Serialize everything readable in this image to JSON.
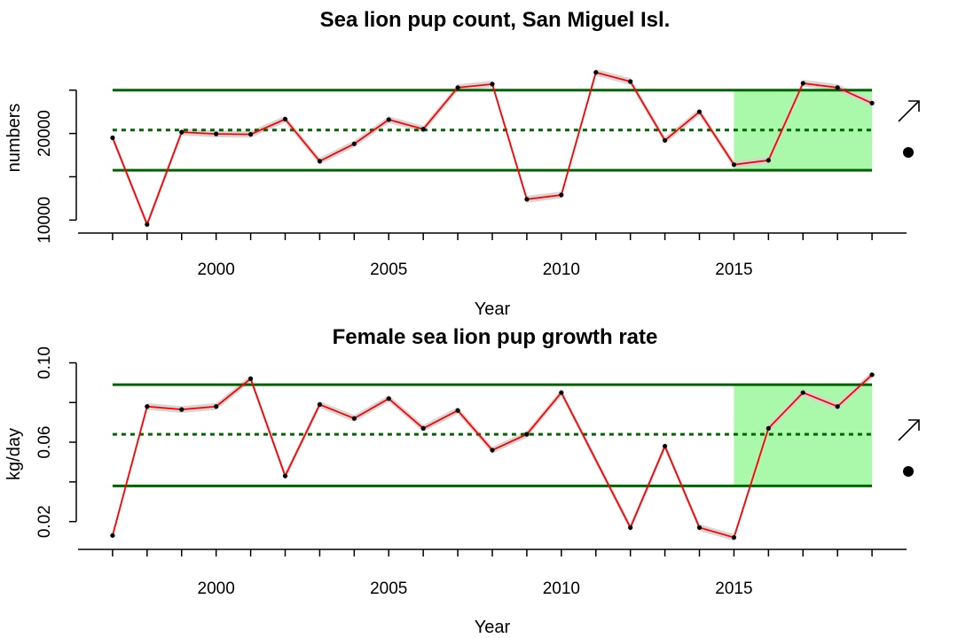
{
  "chart_data": [
    {
      "type": "line",
      "title": "Sea lion pup count, San Miguel Isl.",
      "xlabel": "Year",
      "ylabel": "numbers",
      "xlim": [
        1996,
        2020
      ],
      "ylim": [
        8500,
        30500
      ],
      "x_ticks": [
        2000,
        2005,
        2010,
        2015
      ],
      "y_ticks": [
        10000,
        15000,
        20000,
        25000
      ],
      "y_tick_labels": [
        "10000",
        "",
        "20000",
        ""
      ],
      "grid": false,
      "mean": 20400,
      "upper_sd": 25000,
      "lower_sd": 15750,
      "highlight_range": [
        2015,
        2019
      ],
      "series": [
        {
          "x": [
            1997,
            1998,
            1999,
            2000,
            2001,
            2002,
            2003,
            2004,
            2005,
            2006,
            2007,
            2008,
            2009,
            2010,
            2011,
            2012,
            2013,
            2014,
            2015,
            2016,
            2017,
            2018,
            2019
          ],
          "values": [
            19500,
            9500,
            20150,
            19950,
            19900,
            21650,
            16800,
            18800,
            21600,
            20500,
            25300,
            25700,
            12400,
            12900,
            27050,
            26000,
            19200,
            22500,
            16400,
            16900,
            25800,
            25300,
            23500
          ]
        }
      ],
      "trend_symbol": "↗",
      "status_symbol": "●",
      "colors": {
        "line": "#ff0000",
        "points": "#000000",
        "ref_lines": "#006400",
        "band": "#aaf8aa",
        "ci": "#d3d3d3"
      }
    },
    {
      "type": "line",
      "title": "Female sea lion pup growth rate",
      "xlabel": "Year",
      "ylabel": "kg/day",
      "xlim": [
        1996,
        2020
      ],
      "ylim": [
        0.006,
        0.102
      ],
      "x_ticks": [
        2000,
        2005,
        2010,
        2015
      ],
      "y_ticks": [
        0.02,
        0.04,
        0.06,
        0.08,
        0.1
      ],
      "y_tick_labels": [
        "0.02",
        "",
        "0.06",
        "",
        "0.10"
      ],
      "grid": false,
      "mean": 0.064,
      "upper_sd": 0.089,
      "lower_sd": 0.038,
      "highlight_range": [
        2015,
        2019
      ],
      "series": [
        {
          "x": [
            1997,
            1998,
            1999,
            2000,
            2001,
            2002,
            2003,
            2004,
            2005,
            2006,
            2007,
            2008,
            2009,
            2010,
            2012,
            2013,
            2014,
            2015,
            2016,
            2017,
            2018,
            2019
          ],
          "values": [
            0.013,
            0.078,
            0.0765,
            0.078,
            0.092,
            0.043,
            0.079,
            0.072,
            0.082,
            0.067,
            0.076,
            0.056,
            0.064,
            0.085,
            0.017,
            0.058,
            0.017,
            0.012,
            0.067,
            0.085,
            0.078,
            0.094
          ]
        }
      ],
      "trend_symbol": "↗",
      "status_symbol": "●",
      "colors": {
        "line": "#ff0000",
        "points": "#000000",
        "ref_lines": "#006400",
        "band": "#aaf8aa",
        "ci": "#d3d3d3"
      }
    }
  ]
}
